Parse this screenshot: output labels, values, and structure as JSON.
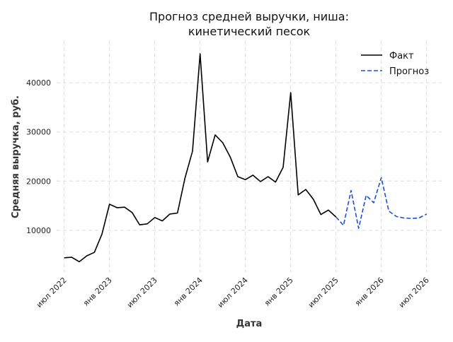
{
  "chart_data": {
    "type": "line",
    "title_lines": [
      "Прогноз средней выручки, ниша:",
      "кинетический песок"
    ],
    "xlabel": "Дата",
    "ylabel": "Средняя выручка, руб.",
    "x_tick_labels": [
      "июл 2022",
      "янв 2023",
      "июл 2023",
      "янв 2024",
      "июл 2024",
      "янв 2025",
      "июл 2025",
      "янв 2026",
      "июл 2026"
    ],
    "x_ticks": [
      "2022-07",
      "2023-01",
      "2023-07",
      "2024-01",
      "2024-07",
      "2025-01",
      "2025-07",
      "2026-01",
      "2026-07"
    ],
    "y_ticks": [
      10000,
      20000,
      30000,
      40000
    ],
    "y_tick_labels": [
      "10000",
      "20000",
      "30000",
      "40000"
    ],
    "xlim": [
      "2022-06",
      "2026-09"
    ],
    "ylim": [
      1500,
      48500
    ],
    "grid": true,
    "legend_position": "top-right",
    "series": [
      {
        "name": "Факт",
        "color": "#000000",
        "dash": "solid",
        "points": [
          [
            "2022-07",
            4400
          ],
          [
            "2022-08",
            4500
          ],
          [
            "2022-09",
            3600
          ],
          [
            "2022-10",
            4800
          ],
          [
            "2022-11",
            5500
          ],
          [
            "2022-12",
            9200
          ],
          [
            "2023-01",
            15300
          ],
          [
            "2023-02",
            14600
          ],
          [
            "2023-03",
            14700
          ],
          [
            "2023-04",
            13600
          ],
          [
            "2023-05",
            11100
          ],
          [
            "2023-06",
            11300
          ],
          [
            "2023-07",
            12600
          ],
          [
            "2023-08",
            11900
          ],
          [
            "2023-09",
            13300
          ],
          [
            "2023-10",
            13500
          ],
          [
            "2023-11",
            20600
          ],
          [
            "2023-12",
            26100
          ],
          [
            "2024-01",
            45900
          ],
          [
            "2024-02",
            23900
          ],
          [
            "2024-03",
            29400
          ],
          [
            "2024-04",
            27800
          ],
          [
            "2024-05",
            24900
          ],
          [
            "2024-06",
            20900
          ],
          [
            "2024-07",
            20300
          ],
          [
            "2024-08",
            21200
          ],
          [
            "2024-09",
            19900
          ],
          [
            "2024-10",
            20900
          ],
          [
            "2024-11",
            19800
          ],
          [
            "2024-12",
            22800
          ],
          [
            "2025-01",
            38000
          ],
          [
            "2025-02",
            17200
          ],
          [
            "2025-03",
            18300
          ],
          [
            "2025-04",
            16300
          ],
          [
            "2025-05",
            13200
          ],
          [
            "2025-06",
            14100
          ],
          [
            "2025-07",
            12700
          ]
        ]
      },
      {
        "name": "Прогноз",
        "color": "#1f4fd1",
        "dash": "dashed",
        "points": [
          [
            "2025-07",
            12700
          ],
          [
            "2025-08",
            11000
          ],
          [
            "2025-09",
            18100
          ],
          [
            "2025-10",
            10400
          ],
          [
            "2025-11",
            17100
          ],
          [
            "2025-12",
            15600
          ],
          [
            "2026-01",
            20700
          ],
          [
            "2026-02",
            13900
          ],
          [
            "2026-03",
            12800
          ],
          [
            "2026-04",
            12500
          ],
          [
            "2026-05",
            12400
          ],
          [
            "2026-06",
            12500
          ],
          [
            "2026-07",
            13300
          ]
        ]
      }
    ]
  }
}
